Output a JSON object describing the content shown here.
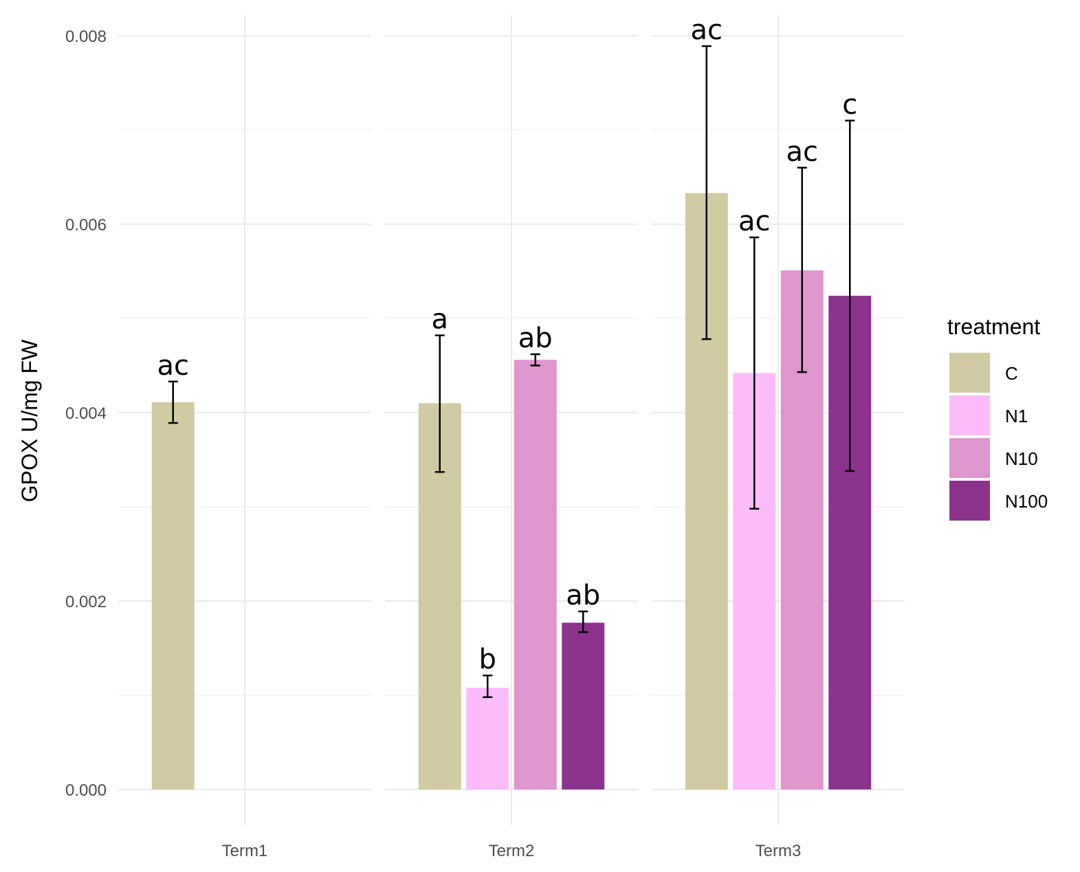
{
  "chart_data": {
    "type": "bar",
    "ylabel": "GPOX U/mg FW",
    "ylim": [
      0,
      0.008
    ],
    "yticks": [
      "0.000",
      "0.002",
      "0.004",
      "0.006",
      "0.008"
    ],
    "ytick_values": [
      0,
      0.002,
      0.004,
      0.006,
      0.008
    ],
    "grid": true,
    "legend": {
      "title": "treatment",
      "position": "right"
    },
    "series": [
      {
        "name": "C",
        "color": "#d0cba3"
      },
      {
        "name": "N1",
        "color": "#fcbcfc"
      },
      {
        "name": "N10",
        "color": "#de96cc"
      },
      {
        "name": "N100",
        "color": "#8b338c"
      }
    ],
    "facets": [
      {
        "label": "Term1",
        "bars": [
          {
            "treatment": "C",
            "value": 0.00411,
            "lower": 0.00389,
            "upper": 0.00433,
            "letter": "ac"
          }
        ]
      },
      {
        "label": "Term2",
        "bars": [
          {
            "treatment": "C",
            "value": 0.0041,
            "lower": 0.00337,
            "upper": 0.00482,
            "letter": "a"
          },
          {
            "treatment": "N1",
            "value": 0.00108,
            "lower": 0.00098,
            "upper": 0.00121,
            "letter": "b"
          },
          {
            "treatment": "N10",
            "value": 0.00456,
            "lower": 0.0045,
            "upper": 0.00462,
            "letter": "ab"
          },
          {
            "treatment": "N100",
            "value": 0.00177,
            "lower": 0.00167,
            "upper": 0.00189,
            "letter": "ab"
          }
        ]
      },
      {
        "label": "Term3",
        "bars": [
          {
            "treatment": "C",
            "value": 0.00633,
            "lower": 0.00478,
            "upper": 0.00789,
            "letter": "ac"
          },
          {
            "treatment": "N1",
            "value": 0.00442,
            "lower": 0.00298,
            "upper": 0.00586,
            "letter": "ac"
          },
          {
            "treatment": "N10",
            "value": 0.00551,
            "lower": 0.00443,
            "upper": 0.0066,
            "letter": "ac"
          },
          {
            "treatment": "N100",
            "value": 0.00524,
            "lower": 0.00338,
            "upper": 0.0071,
            "letter": "c"
          }
        ]
      }
    ]
  }
}
